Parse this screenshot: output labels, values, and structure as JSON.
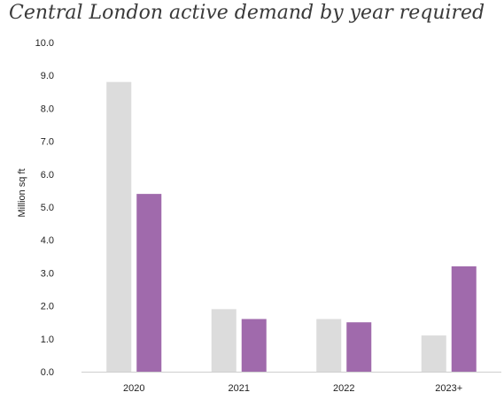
{
  "chart_data": {
    "type": "bar",
    "title": "Central London active demand by year required",
    "xlabel": "",
    "ylabel": "Million sq ft",
    "categories": [
      "2020",
      "2021",
      "2022",
      "2023+"
    ],
    "series": [
      {
        "values": [
          8.8,
          1.9,
          1.6,
          1.1
        ],
        "color": "#dcdcdc"
      },
      {
        "values": [
          5.4,
          1.6,
          1.5,
          3.2
        ],
        "color": "#a06aac"
      }
    ],
    "ylim": [
      0,
      10
    ],
    "yticks": [
      "0.0",
      "1.0",
      "2.0",
      "3.0",
      "4.0",
      "5.0",
      "6.0",
      "7.0",
      "8.0",
      "9.0",
      "10.0"
    ],
    "grid": false,
    "legend": "none"
  }
}
